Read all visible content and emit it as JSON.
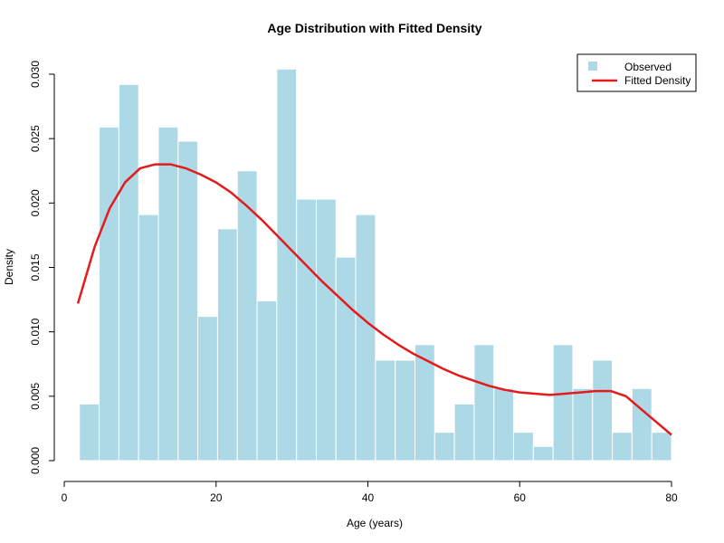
{
  "chart_data": {
    "type": "bar",
    "title": "Age Distribution with Fitted Density",
    "xlabel": "Age (years)",
    "ylabel": "Density",
    "xlim": [
      0,
      80
    ],
    "ylim": [
      0,
      0.03
    ],
    "x_ticks": [
      "0",
      "20",
      "40",
      "60",
      "80"
    ],
    "y_ticks": [
      "0.000",
      "0.005",
      "0.010",
      "0.015",
      "0.020",
      "0.025",
      "0.030"
    ],
    "grid": false,
    "legend_position": "top-right",
    "series": [
      {
        "name": "Observed",
        "kind": "histogram",
        "color": "#add8e6",
        "bins": [
          {
            "start": 2,
            "end": 4.6,
            "value": 0.0044
          },
          {
            "start": 4.6,
            "end": 7.2,
            "value": 0.0259
          },
          {
            "start": 7.2,
            "end": 9.8,
            "value": 0.0292
          },
          {
            "start": 9.8,
            "end": 12.4,
            "value": 0.0191
          },
          {
            "start": 12.4,
            "end": 15.0,
            "value": 0.0259
          },
          {
            "start": 15.0,
            "end": 17.6,
            "value": 0.0248
          },
          {
            "start": 17.6,
            "end": 20.2,
            "value": 0.0112
          },
          {
            "start": 20.2,
            "end": 22.8,
            "value": 0.018
          },
          {
            "start": 22.8,
            "end": 25.4,
            "value": 0.0225
          },
          {
            "start": 25.4,
            "end": 28.0,
            "value": 0.0124
          },
          {
            "start": 28.0,
            "end": 30.6,
            "value": 0.0304
          },
          {
            "start": 30.6,
            "end": 33.2,
            "value": 0.0203
          },
          {
            "start": 33.2,
            "end": 35.8,
            "value": 0.0203
          },
          {
            "start": 35.8,
            "end": 38.4,
            "value": 0.0158
          },
          {
            "start": 38.4,
            "end": 41.0,
            "value": 0.0191
          },
          {
            "start": 41.0,
            "end": 43.6,
            "value": 0.0078
          },
          {
            "start": 43.6,
            "end": 46.2,
            "value": 0.0078
          },
          {
            "start": 46.2,
            "end": 48.8,
            "value": 0.009
          },
          {
            "start": 48.8,
            "end": 51.4,
            "value": 0.0022
          },
          {
            "start": 51.4,
            "end": 54.0,
            "value": 0.0044
          },
          {
            "start": 54.0,
            "end": 56.6,
            "value": 0.009
          },
          {
            "start": 56.6,
            "end": 59.2,
            "value": 0.0056
          },
          {
            "start": 59.2,
            "end": 61.8,
            "value": 0.0022
          },
          {
            "start": 61.8,
            "end": 64.4,
            "value": 0.0011
          },
          {
            "start": 64.4,
            "end": 67.0,
            "value": 0.009
          },
          {
            "start": 67.0,
            "end": 69.6,
            "value": 0.0056
          },
          {
            "start": 69.6,
            "end": 72.2,
            "value": 0.0078
          },
          {
            "start": 72.2,
            "end": 74.8,
            "value": 0.0022
          },
          {
            "start": 74.8,
            "end": 77.4,
            "value": 0.0056
          },
          {
            "start": 77.4,
            "end": 80.0,
            "value": 0.0022
          }
        ]
      },
      {
        "name": "Fitted Density",
        "kind": "line",
        "color": "#e41a1c",
        "x": [
          1.8,
          4,
          6,
          8,
          10,
          12,
          14,
          16,
          18,
          20,
          22,
          24,
          26,
          28,
          30,
          32,
          34,
          36,
          38,
          40,
          42,
          44,
          46,
          48,
          50,
          52,
          54,
          56,
          58,
          60,
          62,
          64,
          66,
          68,
          70,
          72,
          74,
          76,
          78,
          80
        ],
        "y": [
          0.0122,
          0.0166,
          0.0196,
          0.0216,
          0.0227,
          0.023,
          0.023,
          0.0227,
          0.0222,
          0.0216,
          0.0208,
          0.0198,
          0.0187,
          0.0175,
          0.0163,
          0.0151,
          0.0139,
          0.0128,
          0.0117,
          0.0107,
          0.0098,
          0.009,
          0.0083,
          0.0077,
          0.0071,
          0.0066,
          0.0062,
          0.0058,
          0.0055,
          0.0053,
          0.0052,
          0.0051,
          0.0052,
          0.0053,
          0.0054,
          0.0054,
          0.005,
          0.004,
          0.003,
          0.002
        ]
      }
    ]
  }
}
